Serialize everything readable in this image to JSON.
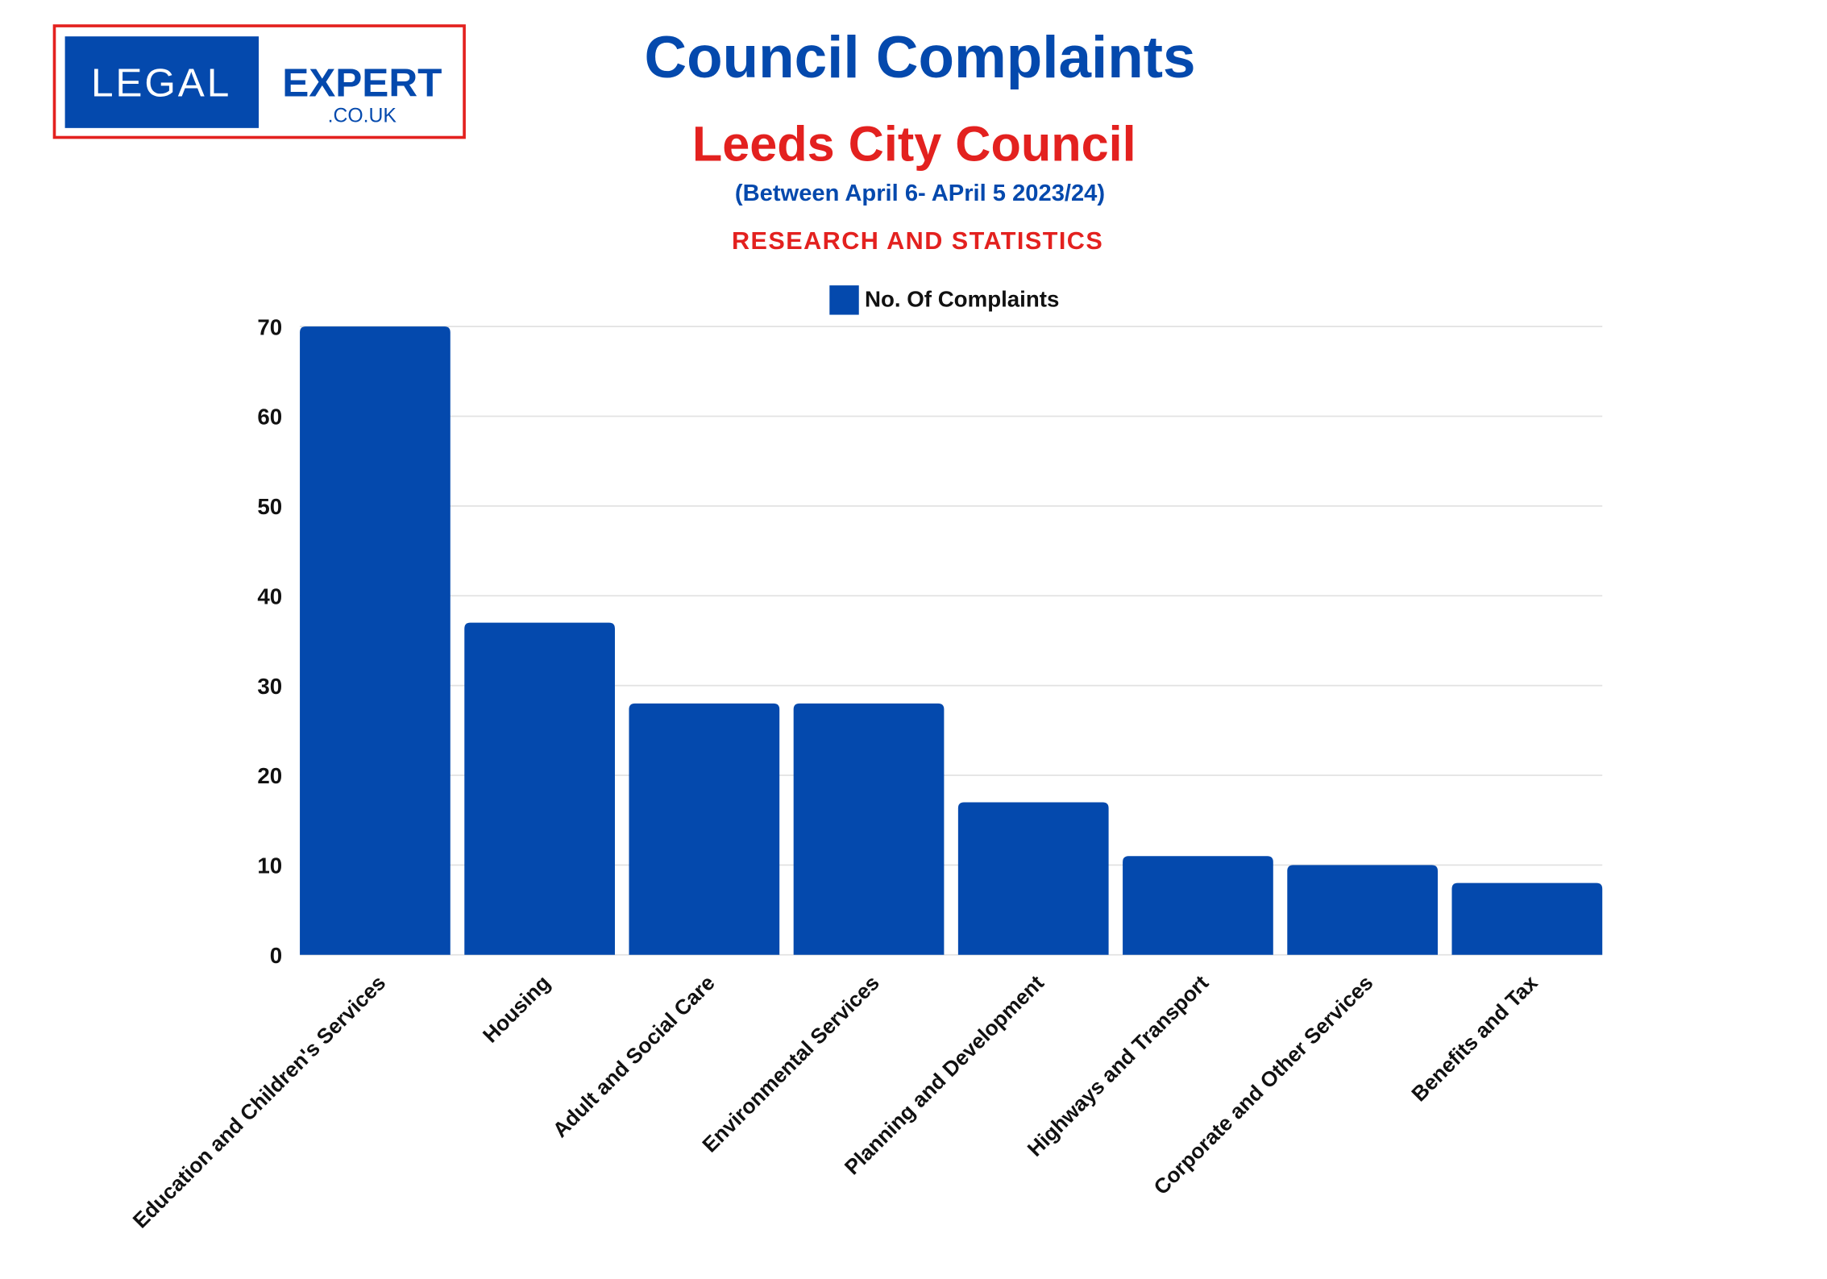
{
  "logo": {
    "word1": "LEGAL",
    "word2": "EXPERT",
    "domain": ".CO.UK"
  },
  "header": {
    "title": "Council Complaints",
    "subtitle": "Leeds City Council",
    "period": "(Between April 6- APril 5 2023/24)",
    "tagline": "RESEARCH AND STATISTICS"
  },
  "colors": {
    "bar": "#0449ad",
    "title": "#0449ad",
    "accent": "#e3211f"
  },
  "chart_data": {
    "type": "bar",
    "title": "Council Complaints",
    "xlabel": "",
    "ylabel": "",
    "legend": {
      "entries": [
        "No. Of Complaints"
      ],
      "placement": "top-center"
    },
    "grid": true,
    "ylim": [
      0,
      70
    ],
    "yticks": [
      0,
      10,
      20,
      30,
      40,
      50,
      60,
      70
    ],
    "categories": [
      "Education and Children's Services",
      "Housing",
      "Adult and Social Care",
      "Environmental Services",
      "Planning and Development",
      "Highways and Transport",
      "Corporate and Other Services",
      "Benefits and Tax"
    ],
    "series": [
      {
        "name": "No. Of Complaints",
        "values": [
          70,
          37,
          28,
          28,
          17,
          11,
          10,
          8
        ]
      }
    ]
  }
}
